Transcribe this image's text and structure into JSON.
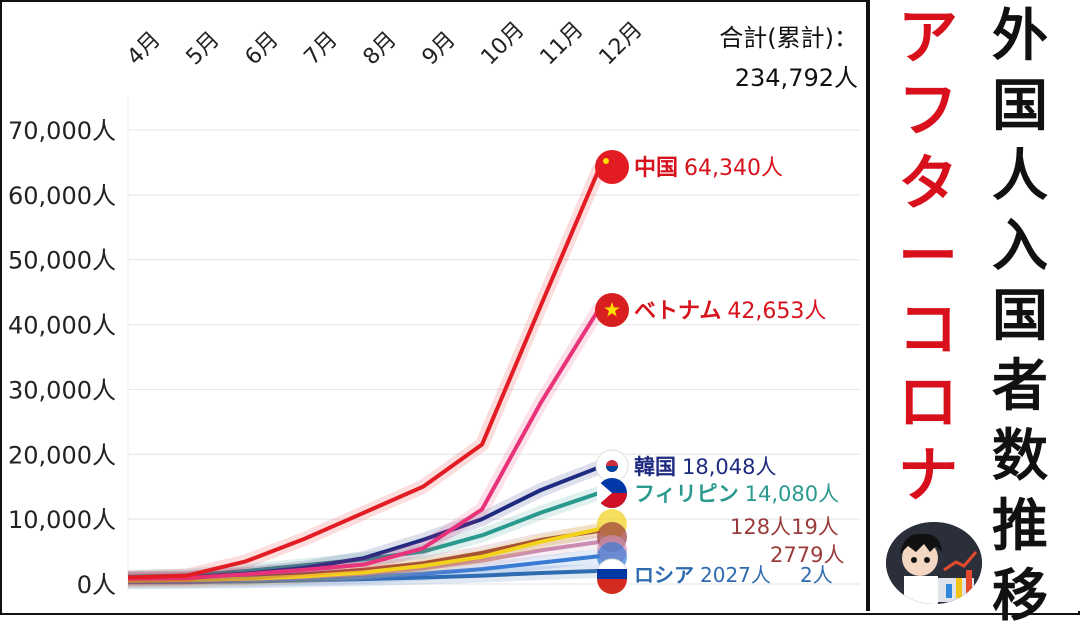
{
  "chart_data": {
    "type": "line",
    "title": "外国人入国者数推移",
    "subtitle": "アフターコロナ",
    "total_label": "合計(累計)：",
    "total_value": "234,792人",
    "categories": [
      "4月",
      "5月",
      "6月",
      "7月",
      "8月",
      "9月",
      "10月",
      "11月",
      "12月"
    ],
    "y_ticks": [
      "0人",
      "10,000人",
      "20,000人",
      "30,000人",
      "40,000人",
      "50,000人",
      "60,000人",
      "70,000人"
    ],
    "ylim": [
      0,
      70000
    ],
    "grid": true,
    "series": [
      {
        "name": "中国",
        "value_label": "64,340人",
        "color": "#e31b23",
        "label_color": "#d6121c",
        "values": [
          1000,
          1300,
          3500,
          7000,
          11000,
          15000,
          21500,
          43000,
          64340
        ]
      },
      {
        "name": "ベトナム",
        "value_label": "42,653人",
        "color": "#e8337a",
        "label_color": "#d6121c",
        "values": [
          800,
          900,
          1500,
          2200,
          3000,
          5500,
          11500,
          28000,
          42653
        ]
      },
      {
        "name": "韓国",
        "value_label": "18,048人",
        "color": "#1e2a80",
        "label_color": "#1e2a80",
        "values": [
          900,
          1000,
          1600,
          2500,
          4000,
          6800,
          10000,
          14500,
          18048
        ]
      },
      {
        "name": "フィリピン",
        "value_label": "14,080人",
        "color": "#2b9a8e",
        "label_color": "#2b9a8e",
        "values": [
          1100,
          1300,
          2000,
          2900,
          3800,
          5000,
          7500,
          11000,
          14080
        ]
      },
      {
        "name": "",
        "value_label": "",
        "color": "#f2d21b",
        "label_color": "#d6121c",
        "values": [
          500,
          600,
          800,
          1200,
          1800,
          2800,
          4200,
          6500,
          8500
        ]
      },
      {
        "name": "",
        "value_label": "",
        "color": "#9a3b3b",
        "label_color": "#9a3b3b",
        "values": [
          700,
          800,
          1000,
          1500,
          2200,
          3200,
          4800,
          6800,
          8200
        ]
      },
      {
        "name": "",
        "value_label": "",
        "color": "#c98bb0",
        "label_color": "#9a3b3b",
        "values": [
          600,
          650,
          800,
          1100,
          1600,
          2400,
          3600,
          5200,
          6500
        ]
      },
      {
        "name": "",
        "value_label": "",
        "color": "#3a7bd5",
        "label_color": "#3a7bd5",
        "values": [
          400,
          450,
          600,
          800,
          1100,
          1600,
          2300,
          3300,
          4300
        ]
      },
      {
        "name": "ロシア",
        "value_label": "2027人",
        "color": "#2f6bb0",
        "label_color": "#2f6bb0",
        "values": [
          300,
          320,
          400,
          550,
          750,
          1000,
          1300,
          1700,
          2027
        ]
      }
    ],
    "overlap_label_1": "128人19人",
    "overlap_label_2": "2779人",
    "overlap_label_3": "2人"
  },
  "side": {
    "red_chars": [
      "ア",
      "フ",
      "タ",
      "ー",
      "コ",
      "ロ",
      "ナ"
    ],
    "black_chars": [
      "外",
      "国",
      "人",
      "入",
      "国",
      "者",
      "数",
      "推",
      "移"
    ]
  }
}
